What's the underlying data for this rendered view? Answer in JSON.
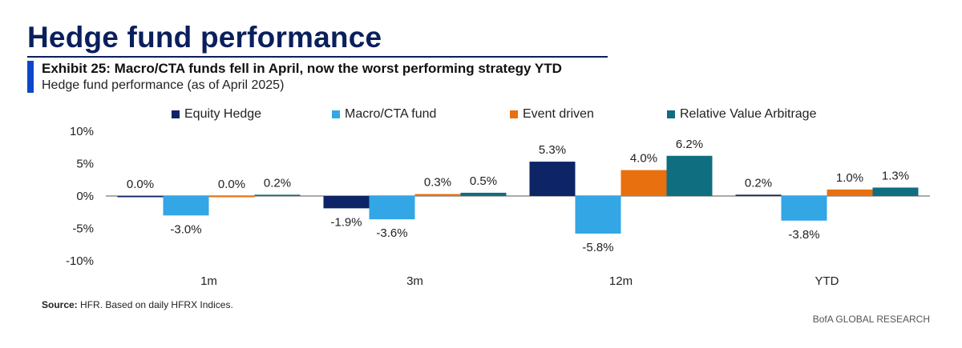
{
  "page_title": "Hedge fund performance",
  "exhibit_title": "Exhibit 25: Macro/CTA funds fell in April, now the worst performing strategy YTD",
  "exhibit_subtitle": "Hedge fund performance (as of April 2025)",
  "source_label": "Source:",
  "source_text": "HFR. Based on daily HFRX Indices.",
  "brand": "BofA GLOBAL RESEARCH",
  "chart_data": {
    "type": "bar",
    "categories": [
      "1m",
      "3m",
      "12m",
      "YTD"
    ],
    "series": [
      {
        "name": "Equity Hedge",
        "color": "#0d2466",
        "values": [
          0.0,
          -1.9,
          5.3,
          0.2
        ],
        "labels": [
          "0.0%",
          "-1.9%",
          "5.3%",
          "0.2%"
        ]
      },
      {
        "name": "Macro/CTA fund",
        "color": "#33a6e6",
        "values": [
          -3.0,
          -3.6,
          -5.8,
          -3.8
        ],
        "labels": [
          "-3.0%",
          "-3.6%",
          "-5.8%",
          "-3.8%"
        ]
      },
      {
        "name": "Event driven",
        "color": "#e8700f",
        "values": [
          0.0,
          0.3,
          4.0,
          1.0
        ],
        "labels": [
          "0.0%",
          "0.3%",
          "4.0%",
          "1.0%"
        ]
      },
      {
        "name": "Relative Value Arbitrage",
        "color": "#0f6e80",
        "values": [
          0.2,
          0.5,
          6.2,
          1.3
        ],
        "labels": [
          "0.2%",
          "0.5%",
          "6.2%",
          "1.3%"
        ]
      }
    ],
    "yticks": [
      10,
      5,
      0,
      -5,
      -10
    ],
    "ytick_labels": [
      "10%",
      "5%",
      "0%",
      "-5%",
      "-10%"
    ],
    "ylim": [
      -10,
      10
    ],
    "grid": false,
    "legend_position": "top"
  }
}
